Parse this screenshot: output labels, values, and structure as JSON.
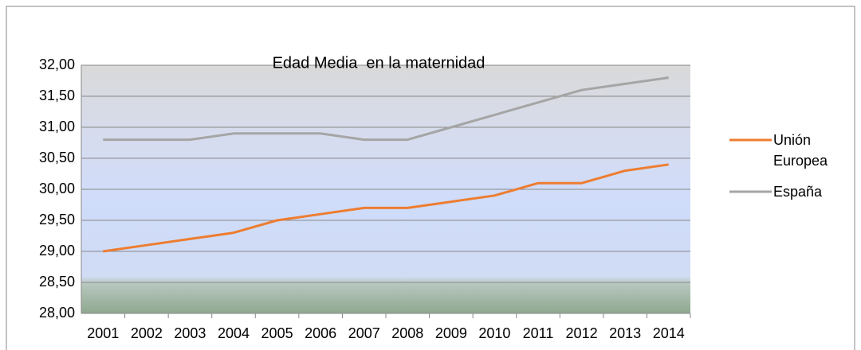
{
  "chart_data": {
    "type": "line",
    "title": "Edad Media  en la maternidad",
    "categories": [
      "2001",
      "2002",
      "2003",
      "2004",
      "2005",
      "2006",
      "2007",
      "2008",
      "2009",
      "2010",
      "2011",
      "2012",
      "2013",
      "2014"
    ],
    "series": [
      {
        "name": "Unión Europea",
        "color": "#ed7d31",
        "values": [
          29.0,
          29.1,
          29.2,
          29.3,
          29.5,
          29.6,
          29.7,
          29.7,
          29.8,
          29.9,
          30.1,
          30.1,
          30.3,
          30.4
        ]
      },
      {
        "name": "España",
        "color": "#a5a5a5",
        "values": [
          30.8,
          30.8,
          30.8,
          30.9,
          30.9,
          30.9,
          30.8,
          30.8,
          31.0,
          31.2,
          31.4,
          31.6,
          31.7,
          31.8
        ]
      }
    ],
    "ylim": [
      28,
      32
    ],
    "yticks": [
      {
        "value": 28,
        "label": "28,00"
      },
      {
        "value": 28.5,
        "label": "28,50"
      },
      {
        "value": 29,
        "label": "29,00"
      },
      {
        "value": 29.5,
        "label": "29,50"
      },
      {
        "value": 30,
        "label": "30,00"
      },
      {
        "value": 30.5,
        "label": "30,50"
      },
      {
        "value": 31,
        "label": "31,00"
      },
      {
        "value": 31.5,
        "label": "31,50"
      },
      {
        "value": 32,
        "label": "32,00"
      }
    ],
    "grid": true,
    "legend": "right"
  }
}
